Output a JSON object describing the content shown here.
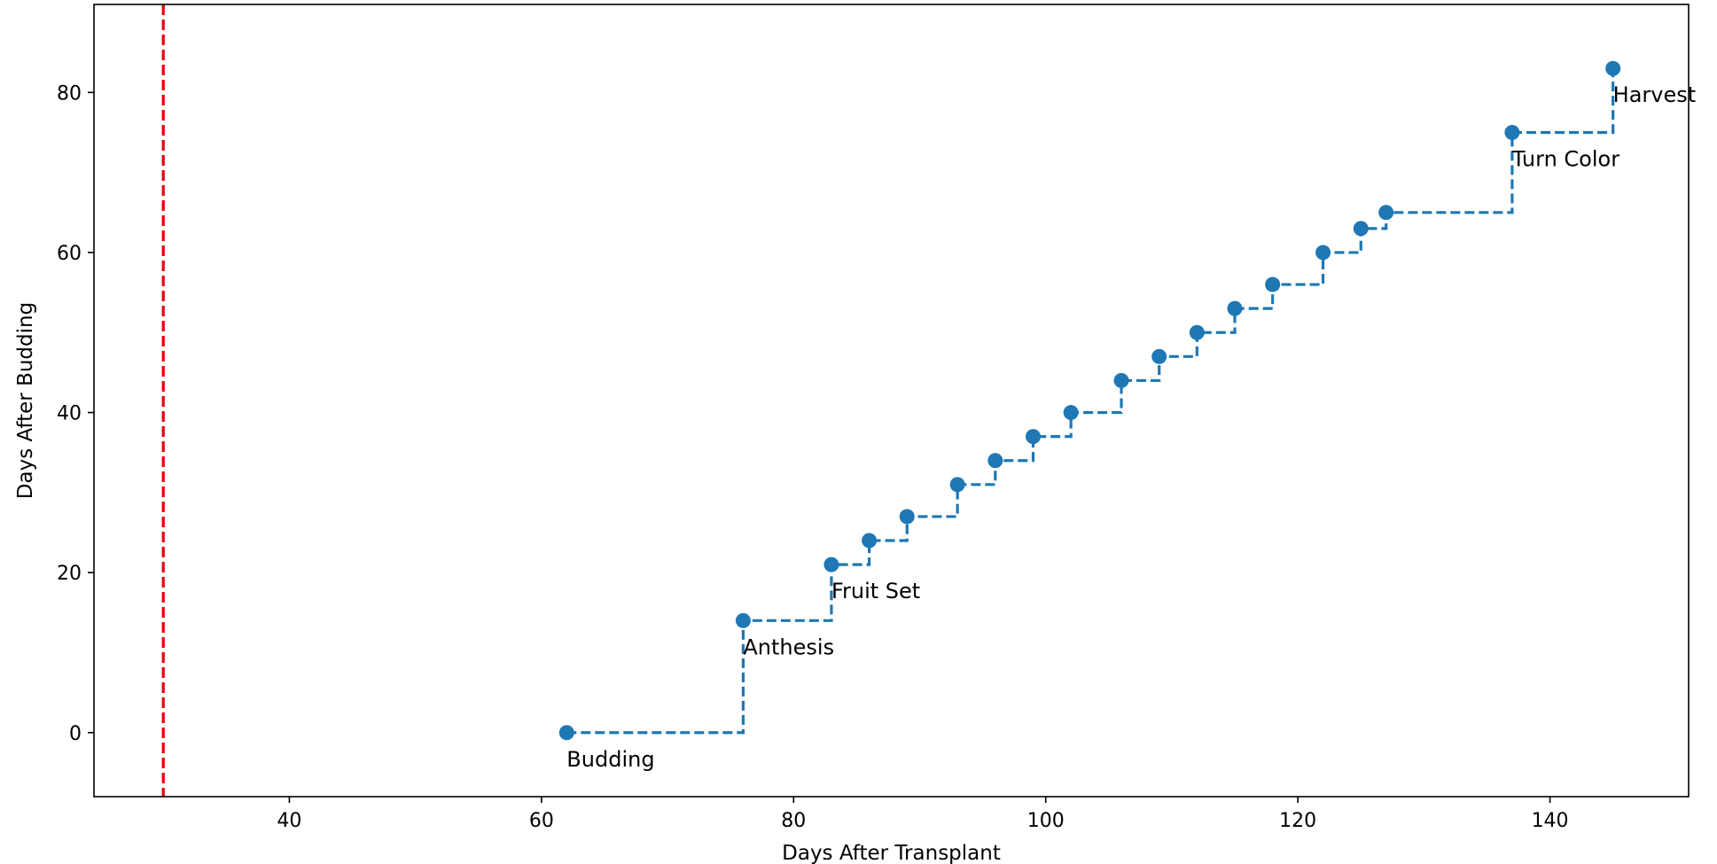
{
  "chart_data": {
    "type": "line",
    "xlabel": "Days After Transplant",
    "ylabel": "Days After Budding",
    "xlim": [
      24.5,
      151
    ],
    "ylim": [
      -8,
      91
    ],
    "grid": false,
    "x_ticks": [
      40,
      60,
      80,
      100,
      120,
      140
    ],
    "y_ticks": [
      0,
      20,
      40,
      60,
      80
    ],
    "vline": {
      "x": 30,
      "color": "#e8000b",
      "style": "dashed"
    },
    "series": [
      {
        "color": "#1f77b4",
        "drawstyle": "steps-post",
        "linestyle": "dashed",
        "marker": "circle",
        "x": [
          62,
          76,
          83,
          86,
          89,
          93,
          96,
          99,
          102,
          106,
          109,
          112,
          115,
          118,
          122,
          125,
          127,
          137,
          145
        ],
        "y": [
          0,
          14,
          21,
          24,
          27,
          31,
          34,
          37,
          40,
          44,
          47,
          50,
          53,
          56,
          60,
          63,
          65,
          75,
          83
        ]
      }
    ],
    "annotations": [
      {
        "text": "Budding",
        "x": 62,
        "y": 0
      },
      {
        "text": "Anthesis",
        "x": 76,
        "y": 14
      },
      {
        "text": "Fruit Set",
        "x": 83,
        "y": 21
      },
      {
        "text": "Turn Color",
        "x": 137,
        "y": 75
      },
      {
        "text": "Harvest",
        "x": 145,
        "y": 83
      }
    ]
  }
}
